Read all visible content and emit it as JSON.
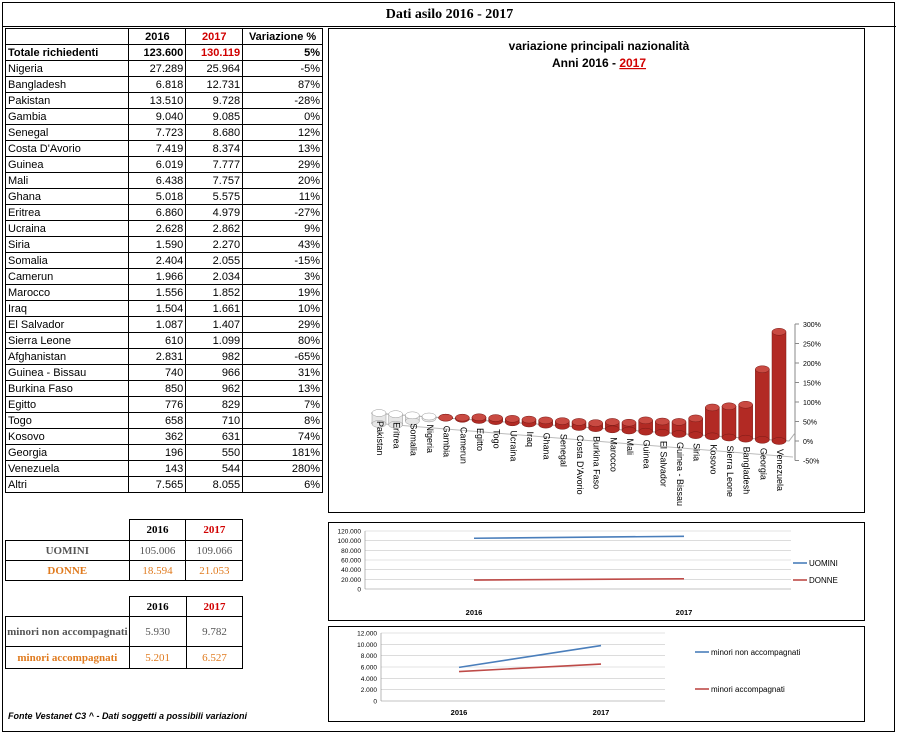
{
  "title": "Dati asilo 2016 - 2017",
  "table": {
    "headers": {
      "y2016": "2016",
      "y2017": "2017",
      "variation": "Variazione  %"
    },
    "rows": [
      {
        "name": "Totale richiedenti",
        "v2016": "123.600",
        "v2017": "130.119",
        "var": "5%",
        "bold": true
      },
      {
        "name": "Nigeria",
        "v2016": "27.289",
        "v2017": "25.964",
        "var": "-5%"
      },
      {
        "name": "Bangladesh",
        "v2016": "6.818",
        "v2017": "12.731",
        "var": "87%"
      },
      {
        "name": "Pakistan",
        "v2016": "13.510",
        "v2017": "9.728",
        "var": "-28%"
      },
      {
        "name": "Gambia",
        "v2016": "9.040",
        "v2017": "9.085",
        "var": "0%"
      },
      {
        "name": "Senegal",
        "v2016": "7.723",
        "v2017": "8.680",
        "var": "12%"
      },
      {
        "name": "Costa D'Avorio",
        "v2016": "7.419",
        "v2017": "8.374",
        "var": "13%"
      },
      {
        "name": "Guinea",
        "v2016": "6.019",
        "v2017": "7.777",
        "var": "29%"
      },
      {
        "name": "Mali",
        "v2016": "6.438",
        "v2017": "7.757",
        "var": "20%"
      },
      {
        "name": "Ghana",
        "v2016": "5.018",
        "v2017": "5.575",
        "var": "11%"
      },
      {
        "name": "Eritrea",
        "v2016": "6.860",
        "v2017": "4.979",
        "var": "-27%"
      },
      {
        "name": "Ucraina",
        "v2016": "2.628",
        "v2017": "2.862",
        "var": "9%"
      },
      {
        "name": "Siria",
        "v2016": "1.590",
        "v2017": "2.270",
        "var": "43%"
      },
      {
        "name": "Somalia",
        "v2016": "2.404",
        "v2017": "2.055",
        "var": "-15%"
      },
      {
        "name": "Camerun",
        "v2016": "1.966",
        "v2017": "2.034",
        "var": "3%"
      },
      {
        "name": "Marocco",
        "v2016": "1.556",
        "v2017": "1.852",
        "var": "19%"
      },
      {
        "name": "Iraq",
        "v2016": "1.504",
        "v2017": "1.661",
        "var": "10%"
      },
      {
        "name": "El Salvador",
        "v2016": "1.087",
        "v2017": "1.407",
        "var": "29%"
      },
      {
        "name": "Sierra Leone",
        "v2016": "610",
        "v2017": "1.099",
        "var": "80%"
      },
      {
        "name": "Afghanistan",
        "v2016": "2.831",
        "v2017": "982",
        "var": "-65%"
      },
      {
        "name": "Guinea - Bissau",
        "v2016": "740",
        "v2017": "966",
        "var": "31%"
      },
      {
        "name": "Burkina Faso",
        "v2016": "850",
        "v2017": "962",
        "var": "13%"
      },
      {
        "name": "Egitto",
        "v2016": "776",
        "v2017": "829",
        "var": "7%"
      },
      {
        "name": "Togo",
        "v2016": "658",
        "v2017": "710",
        "var": "8%"
      },
      {
        "name": "Kosovo",
        "v2016": "362",
        "v2017": "631",
        "var": "74%"
      },
      {
        "name": "Georgia",
        "v2016": "196",
        "v2017": "550",
        "var": "181%"
      },
      {
        "name": "Venezuela",
        "v2016": "143",
        "v2017": "544",
        "var": "280%"
      },
      {
        "name": "Altri",
        "v2016": "7.565",
        "v2017": "8.055",
        "var": "6%"
      }
    ]
  },
  "gender_table": {
    "y2016": "2016",
    "y2017": "2017",
    "rows": [
      {
        "label": "UOMINI",
        "v2016": "105.006",
        "v2017": "109.066"
      },
      {
        "label": "DONNE",
        "v2016": "18.594",
        "v2017": "21.053"
      }
    ]
  },
  "minors_table": {
    "y2016": "2016",
    "y2017": "2017",
    "rows": [
      {
        "label": "minori non accompagnati",
        "v2016": "5.930",
        "v2017": "9.782"
      },
      {
        "label": "minori accompagnati",
        "v2016": "5.201",
        "v2017": "6.527"
      }
    ]
  },
  "footnote": "Fonte Vestanet C3 ^ - Dati soggetti a possibili variazioni",
  "colors": {
    "red": "#d10000",
    "orange": "#e07b1f",
    "bar": "#b22a24",
    "blue": "#4a7ebb",
    "darkred": "#be4b48"
  },
  "chart_data": [
    {
      "type": "bar",
      "title": "variazione principali nazionalità",
      "subtitle_prefix": "Anni 2016 - ",
      "subtitle_highlight": "2017",
      "categories": [
        "Pakistan",
        "Eritrea",
        "Somalia",
        "Nigeria",
        "Gambia",
        "Camerun",
        "Egitto",
        "Togo",
        "Ucraina",
        "Iraq",
        "Ghana",
        "Senegal",
        "Costa D'Avorio",
        "Burkina Faso",
        "Marocco",
        "Mali",
        "Guinea",
        "El Salvador",
        "Guinea - Bissau",
        "Siria",
        "Kosovo",
        "Sierra Leone",
        "Bangladesh",
        "Georgia",
        "Venezuela"
      ],
      "values": [
        -28,
        -27,
        -15,
        -5,
        0,
        3,
        7,
        8,
        9,
        10,
        11,
        12,
        13,
        13,
        19,
        20,
        29,
        29,
        31,
        43,
        74,
        80,
        87,
        181,
        280
      ],
      "ylim": [
        -50,
        300
      ],
      "yticks": [
        -50,
        0,
        50,
        100,
        150,
        200,
        250,
        300
      ],
      "ytick_labels": [
        "-50%",
        "0%",
        "50%",
        "100%",
        "150%",
        "200%",
        "250%",
        "300%"
      ],
      "style": "3d-cylinder"
    },
    {
      "type": "line",
      "x": [
        "2016",
        "2017"
      ],
      "series": [
        {
          "name": "UOMINI",
          "values": [
            105006,
            109066
          ]
        },
        {
          "name": "DONNE",
          "values": [
            18594,
            21053
          ]
        }
      ],
      "ylim": [
        0,
        120000
      ],
      "yticks": [
        0,
        20000,
        40000,
        60000,
        80000,
        100000,
        120000
      ],
      "ytick_labels": [
        "0",
        "20.000",
        "40.000",
        "60.000",
        "80.000",
        "100.000",
        "120.000"
      ],
      "legend": "right"
    },
    {
      "type": "line",
      "x": [
        "2016",
        "2017"
      ],
      "series": [
        {
          "name": "minori non accompagnati",
          "values": [
            5930,
            9782
          ]
        },
        {
          "name": "minori accompagnati",
          "values": [
            5201,
            6527
          ]
        }
      ],
      "ylim": [
        0,
        12000
      ],
      "yticks": [
        0,
        2000,
        4000,
        6000,
        8000,
        10000,
        12000
      ],
      "ytick_labels": [
        "0",
        "2.000",
        "4.000",
        "6.000",
        "8.000",
        "10.000",
        "12.000"
      ],
      "legend": "right"
    }
  ]
}
